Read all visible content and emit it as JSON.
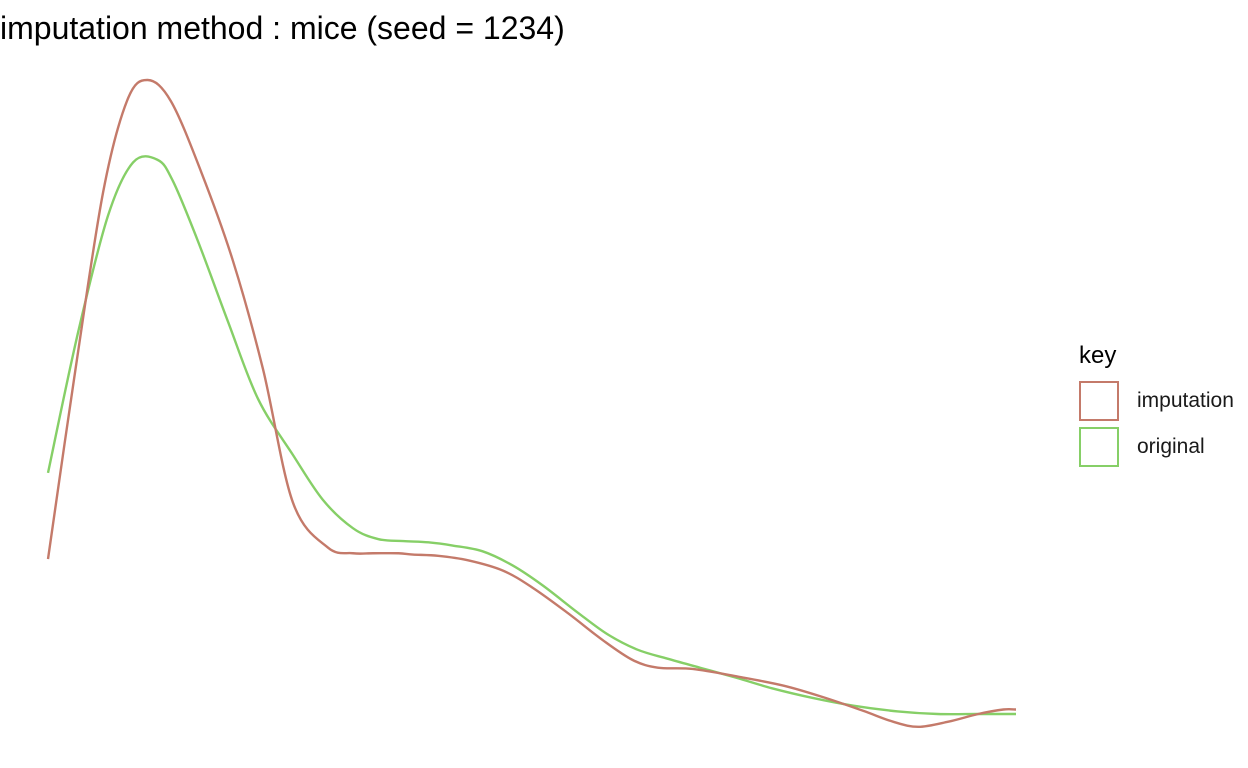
{
  "chart_data": {
    "type": "line",
    "title": "imputation method : mice (seed = 1234)",
    "xlabel": "",
    "ylabel": "",
    "xlim": [
      0,
      1
    ],
    "ylim": [
      0,
      1
    ],
    "grid": false,
    "axes_visible": false,
    "legend_position": "right",
    "legend_title": "key",
    "series": [
      {
        "name": "imputation",
        "color": "#C47A6A",
        "x": [
          0.0,
          0.028,
          0.057,
          0.082,
          0.103,
          0.127,
          0.158,
          0.191,
          0.222,
          0.253,
          0.289,
          0.315,
          0.336,
          0.362,
          0.377,
          0.403,
          0.434,
          0.47,
          0.501,
          0.537,
          0.573,
          0.604,
          0.63,
          0.666,
          0.713,
          0.76,
          0.801,
          0.842,
          0.873,
          0.899,
          0.93,
          0.961,
          0.987,
          1.0
        ],
        "y": [
          0.255,
          0.546,
          0.826,
          0.969,
          1.0,
          0.967,
          0.858,
          0.719,
          0.551,
          0.343,
          0.273,
          0.264,
          0.264,
          0.264,
          0.262,
          0.26,
          0.253,
          0.237,
          0.21,
          0.171,
          0.129,
          0.098,
          0.086,
          0.084,
          0.072,
          0.058,
          0.04,
          0.019,
          0.002,
          -0.006,
          0.002,
          0.014,
          0.021,
          0.021
        ]
      },
      {
        "name": "original",
        "color": "#86CF67",
        "x": [
          0.0,
          0.031,
          0.062,
          0.088,
          0.113,
          0.129,
          0.155,
          0.186,
          0.217,
          0.253,
          0.284,
          0.315,
          0.341,
          0.367,
          0.393,
          0.418,
          0.449,
          0.48,
          0.511,
          0.547,
          0.578,
          0.609,
          0.64,
          0.676,
          0.712,
          0.748,
          0.79,
          0.832,
          0.878,
          0.919,
          0.96,
          0.989,
          1.0
        ],
        "y": [
          0.389,
          0.607,
          0.789,
          0.872,
          0.876,
          0.843,
          0.749,
          0.624,
          0.504,
          0.417,
          0.347,
          0.303,
          0.286,
          0.283,
          0.281,
          0.276,
          0.267,
          0.245,
          0.214,
          0.172,
          0.138,
          0.114,
          0.1,
          0.085,
          0.07,
          0.054,
          0.039,
          0.027,
          0.018,
          0.014,
          0.014,
          0.014,
          0.014
        ]
      }
    ]
  }
}
